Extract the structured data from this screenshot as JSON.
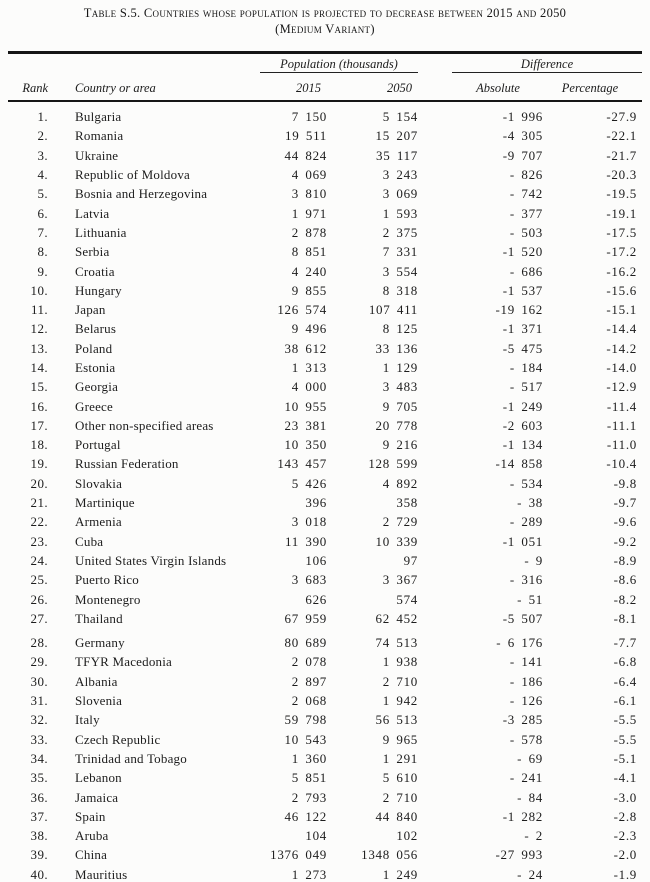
{
  "page": {
    "title_line1": "Table S.5. Countries whose population is projected to decrease between 2015 and 2050",
    "title_line2": "(Medium Variant)"
  },
  "table": {
    "group_headers": {
      "population": "Population (thousands)",
      "difference": "Difference"
    },
    "column_headers": {
      "rank": "Rank",
      "country": "Country or area",
      "y2015": "2015",
      "y2050": "2050",
      "absolute": "Absolute",
      "percentage": "Percentage"
    },
    "rows": [
      {
        "rank": "1.",
        "country": "Bulgaria",
        "p2015": "7 150",
        "p2050": "5 154",
        "abs": "-1 996",
        "pct": "-27.9"
      },
      {
        "rank": "2.",
        "country": "Romania",
        "p2015": "19 511",
        "p2050": "15 207",
        "abs": "-4 305",
        "pct": "-22.1"
      },
      {
        "rank": "3.",
        "country": "Ukraine",
        "p2015": "44 824",
        "p2050": "35 117",
        "abs": "-9 707",
        "pct": "-21.7"
      },
      {
        "rank": "4.",
        "country": "Republic of Moldova",
        "p2015": "4 069",
        "p2050": "3 243",
        "abs": "- 826",
        "pct": "-20.3"
      },
      {
        "rank": "5.",
        "country": "Bosnia and Herzegovina",
        "p2015": "3 810",
        "p2050": "3 069",
        "abs": "- 742",
        "pct": "-19.5"
      },
      {
        "rank": "6.",
        "country": "Latvia",
        "p2015": "1 971",
        "p2050": "1 593",
        "abs": "- 377",
        "pct": "-19.1"
      },
      {
        "rank": "7.",
        "country": "Lithuania",
        "p2015": "2 878",
        "p2050": "2 375",
        "abs": "- 503",
        "pct": "-17.5"
      },
      {
        "rank": "8.",
        "country": "Serbia",
        "p2015": "8 851",
        "p2050": "7 331",
        "abs": "-1 520",
        "pct": "-17.2"
      },
      {
        "rank": "9.",
        "country": "Croatia",
        "p2015": "4 240",
        "p2050": "3 554",
        "abs": "- 686",
        "pct": "-16.2"
      },
      {
        "rank": "10.",
        "country": "Hungary",
        "p2015": "9 855",
        "p2050": "8 318",
        "abs": "-1 537",
        "pct": "-15.6"
      },
      {
        "rank": "11.",
        "country": "Japan",
        "p2015": "126 574",
        "p2050": "107 411",
        "abs": "-19 162",
        "pct": "-15.1"
      },
      {
        "rank": "12.",
        "country": "Belarus",
        "p2015": "9 496",
        "p2050": "8 125",
        "abs": "-1 371",
        "pct": "-14.4"
      },
      {
        "rank": "13.",
        "country": "Poland",
        "p2015": "38 612",
        "p2050": "33 136",
        "abs": "-5 475",
        "pct": "-14.2"
      },
      {
        "rank": "14.",
        "country": "Estonia",
        "p2015": "1 313",
        "p2050": "1 129",
        "abs": "- 184",
        "pct": "-14.0"
      },
      {
        "rank": "15.",
        "country": "Georgia",
        "p2015": "4 000",
        "p2050": "3 483",
        "abs": "- 517",
        "pct": "-12.9"
      },
      {
        "rank": "16.",
        "country": "Greece",
        "p2015": "10 955",
        "p2050": "9 705",
        "abs": "-1 249",
        "pct": "-11.4"
      },
      {
        "rank": "17.",
        "country": "Other non-specified areas",
        "p2015": "23 381",
        "p2050": "20 778",
        "abs": "-2 603",
        "pct": "-11.1"
      },
      {
        "rank": "18.",
        "country": "Portugal",
        "p2015": "10 350",
        "p2050": "9 216",
        "abs": "-1 134",
        "pct": "-11.0"
      },
      {
        "rank": "19.",
        "country": "Russian Federation",
        "p2015": "143 457",
        "p2050": "128 599",
        "abs": "-14 858",
        "pct": "-10.4"
      },
      {
        "rank": "20.",
        "country": "Slovakia",
        "p2015": "5 426",
        "p2050": "4 892",
        "abs": "- 534",
        "pct": "-9.8"
      },
      {
        "rank": "21.",
        "country": "Martinique",
        "p2015": "396",
        "p2050": "358",
        "abs": "- 38",
        "pct": "-9.7"
      },
      {
        "rank": "22.",
        "country": "Armenia",
        "p2015": "3 018",
        "p2050": "2 729",
        "abs": "- 289",
        "pct": "-9.6"
      },
      {
        "rank": "23.",
        "country": "Cuba",
        "p2015": "11 390",
        "p2050": "10 339",
        "abs": "-1 051",
        "pct": "-9.2"
      },
      {
        "rank": "24.",
        "country": "United States Virgin Islands",
        "p2015": "106",
        "p2050": "97",
        "abs": "- 9",
        "pct": "-8.9"
      },
      {
        "rank": "25.",
        "country": "Puerto Rico",
        "p2015": "3 683",
        "p2050": "3 367",
        "abs": "- 316",
        "pct": "-8.6"
      },
      {
        "rank": "26.",
        "country": "Montenegro",
        "p2015": "626",
        "p2050": "574",
        "abs": "- 51",
        "pct": "-8.2"
      },
      {
        "rank": "27.",
        "country": "Thailand",
        "p2015": "67 959",
        "p2050": "62 452",
        "abs": "-5 507",
        "pct": "-8.1"
      },
      {
        "rank": "28.",
        "country": "Germany",
        "p2015": "80 689",
        "p2050": "74 513",
        "abs": "- 6 176",
        "pct": "-7.7",
        "gap_before": true
      },
      {
        "rank": "29.",
        "country": "TFYR Macedonia",
        "p2015": "2 078",
        "p2050": "1 938",
        "abs": "- 141",
        "pct": "-6.8"
      },
      {
        "rank": "30.",
        "country": "Albania",
        "p2015": "2 897",
        "p2050": "2 710",
        "abs": "- 186",
        "pct": "-6.4"
      },
      {
        "rank": "31.",
        "country": "Slovenia",
        "p2015": "2 068",
        "p2050": "1 942",
        "abs": "- 126",
        "pct": "-6.1"
      },
      {
        "rank": "32.",
        "country": "Italy",
        "p2015": "59 798",
        "p2050": "56 513",
        "abs": "-3 285",
        "pct": "-5.5"
      },
      {
        "rank": "33.",
        "country": "Czech Republic",
        "p2015": "10 543",
        "p2050": "9 965",
        "abs": "- 578",
        "pct": "-5.5"
      },
      {
        "rank": "34.",
        "country": "Trinidad and Tobago",
        "p2015": "1 360",
        "p2050": "1 291",
        "abs": "- 69",
        "pct": "-5.1"
      },
      {
        "rank": "35.",
        "country": "Lebanon",
        "p2015": "5 851",
        "p2050": "5 610",
        "abs": "- 241",
        "pct": "-4.1"
      },
      {
        "rank": "36.",
        "country": "Jamaica",
        "p2015": "2 793",
        "p2050": "2 710",
        "abs": "- 84",
        "pct": "-3.0"
      },
      {
        "rank": "37.",
        "country": "Spain",
        "p2015": "46 122",
        "p2050": "44 840",
        "abs": "-1 282",
        "pct": "-2.8"
      },
      {
        "rank": "38.",
        "country": "Aruba",
        "p2015": "104",
        "p2050": "102",
        "abs": "- 2",
        "pct": "-2.3"
      },
      {
        "rank": "39.",
        "country": "China",
        "p2015": "1376 049",
        "p2050": "1348 056",
        "abs": "-27 993",
        "pct": "-2.0"
      },
      {
        "rank": "40.",
        "country": "Mauritius",
        "p2015": "1 273",
        "p2050": "1 249",
        "abs": "- 24",
        "pct": "-1.9"
      }
    ]
  },
  "colors": {
    "text": "#1f1f1f",
    "rule": "#161616",
    "background": "#fcfcfb"
  }
}
